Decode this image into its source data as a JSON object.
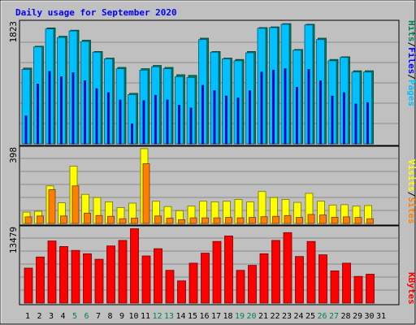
{
  "colors": {
    "background": "#c0c0c0",
    "title": "#0000ff",
    "hits": "#00805c",
    "files": "#0000ff",
    "pages": "#00c0ff",
    "visits": "#ffff00",
    "sites": "#ff8000",
    "kbytes": "#ff0000",
    "weekend_label": "#00805c"
  },
  "chart_data": [
    {
      "type": "bar",
      "title": "Daily usage for September 2020",
      "max_label": "1823",
      "ylim": [
        0,
        1823
      ],
      "legend": {
        "position": "right",
        "order": [
          "Pages",
          "Files",
          "Hits"
        ],
        "separator": "/"
      },
      "grid": true,
      "categories": [
        "1",
        "2",
        "3",
        "4",
        "5",
        "6",
        "7",
        "8",
        "9",
        "10",
        "11",
        "12",
        "13",
        "14",
        "15",
        "16",
        "17",
        "18",
        "19",
        "20",
        "21",
        "22",
        "23",
        "24",
        "25",
        "26",
        "27",
        "28",
        "29",
        "30"
      ],
      "series": [
        {
          "name": "Hits",
          "values": [
            1140,
            1470,
            1745,
            1620,
            1710,
            1560,
            1390,
            1290,
            1150,
            760,
            1130,
            1180,
            1150,
            1040,
            1030,
            1590,
            1390,
            1290,
            1270,
            1390,
            1750,
            1760,
            1810,
            1420,
            1800,
            1590,
            1270,
            1310,
            1100,
            1100
          ]
        },
        {
          "name": "Files",
          "values": [
            420,
            900,
            1090,
            1010,
            1070,
            950,
            830,
            770,
            660,
            300,
            650,
            730,
            660,
            580,
            540,
            880,
            800,
            720,
            690,
            800,
            1080,
            1110,
            1130,
            850,
            1120,
            950,
            720,
            770,
            600,
            620
          ]
        },
        {
          "name": "Pages",
          "values": [
            1120,
            1460,
            1730,
            1600,
            1700,
            1540,
            1380,
            1280,
            1130,
            740,
            1110,
            1160,
            1130,
            1010,
            1000,
            1570,
            1380,
            1280,
            1250,
            1370,
            1740,
            1750,
            1800,
            1410,
            1790,
            1570,
            1250,
            1300,
            1080,
            1080
          ]
        }
      ]
    },
    {
      "type": "bar",
      "max_label": "398",
      "ylim": [
        0,
        398
      ],
      "legend": {
        "position": "right",
        "order": [
          "Sites",
          "Visits"
        ],
        "separator": "/"
      },
      "grid": true,
      "categories": [
        "1",
        "2",
        "3",
        "4",
        "5",
        "6",
        "7",
        "8",
        "9",
        "10",
        "11",
        "12",
        "13",
        "14",
        "15",
        "16",
        "17",
        "18",
        "19",
        "20",
        "21",
        "22",
        "23",
        "24",
        "25",
        "26",
        "27",
        "28",
        "29",
        "30"
      ],
      "series": [
        {
          "name": "Visits",
          "values": [
            60,
            65,
            200,
            110,
            305,
            155,
            138,
            115,
            85,
            108,
            398,
            118,
            90,
            68,
            92,
            118,
            115,
            118,
            128,
            115,
            170,
            138,
            128,
            112,
            160,
            118,
            98,
            100,
            92,
            95
          ]
        },
        {
          "name": "Sites",
          "values": [
            35,
            40,
            180,
            40,
            200,
            55,
            42,
            38,
            25,
            28,
            318,
            40,
            28,
            20,
            30,
            30,
            30,
            32,
            30,
            32,
            36,
            38,
            42,
            32,
            48,
            45,
            33,
            35,
            32,
            25
          ]
        }
      ]
    },
    {
      "type": "bar",
      "max_label": "13479",
      "ylim": [
        0,
        13479
      ],
      "legend": {
        "position": "right",
        "order": [
          "KBytes"
        ]
      },
      "grid": true,
      "categories": [
        "1",
        "2",
        "3",
        "4",
        "5",
        "6",
        "7",
        "8",
        "9",
        "10",
        "11",
        "12",
        "13",
        "14",
        "15",
        "16",
        "17",
        "18",
        "19",
        "20",
        "21",
        "22",
        "23",
        "24",
        "25",
        "26",
        "27",
        "28",
        "29",
        "30"
      ],
      "series": [
        {
          "name": "KBytes",
          "values": [
            6300,
            8300,
            11200,
            10200,
            9500,
            8900,
            7900,
            10300,
            11300,
            13400,
            8500,
            9800,
            5900,
            4000,
            7200,
            9000,
            11100,
            12100,
            5900,
            6800,
            8900,
            11300,
            12700,
            8400,
            11100,
            8700,
            5800,
            7200,
            4800,
            5200
          ]
        }
      ]
    }
  ],
  "x_axis": {
    "labels": [
      "1",
      "2",
      "3",
      "4",
      "5",
      "6",
      "7",
      "8",
      "9",
      "10",
      "11",
      "12",
      "13",
      "14",
      "15",
      "16",
      "17",
      "18",
      "19",
      "20",
      "21",
      "22",
      "23",
      "24",
      "25",
      "26",
      "27",
      "28",
      "29",
      "30",
      "31"
    ],
    "weekend_days": [
      5,
      6,
      12,
      13,
      19,
      20,
      26,
      27
    ]
  }
}
